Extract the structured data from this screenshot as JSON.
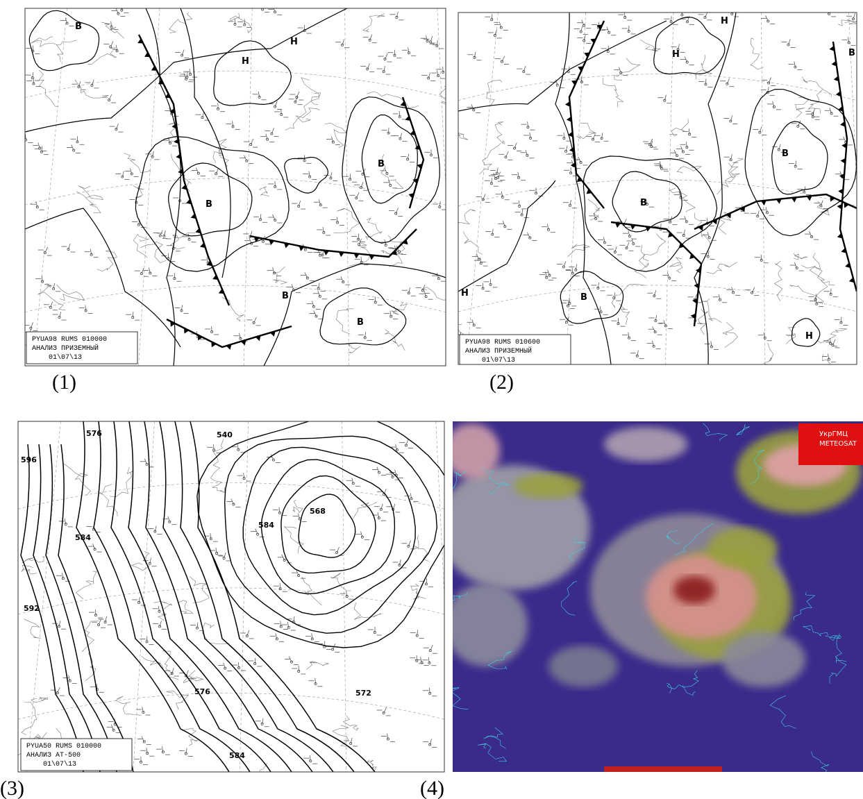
{
  "panels": [
    {
      "label": "(1)",
      "stamp": [
        "PYUA98  RUMS  010000",
        "АНАЛИЗ  ПРИЗЕМНЫЙ",
        "01\\07\\13"
      ],
      "centers": [
        "B",
        "H",
        "H",
        "B",
        "B",
        "B",
        "B"
      ]
    },
    {
      "label": "(2)",
      "stamp": [
        "PYUA98  RUMS  010600",
        "АНАЛИЗ  ПРИЗЕМНЫЙ",
        "01\\07\\13"
      ],
      "centers": [
        "H",
        "H",
        "H",
        "B",
        "B",
        "B",
        "H",
        "B"
      ]
    },
    {
      "label": "(3)",
      "stamp": [
        "PYUA50  RUMS  010000",
        "АНАЛИЗ  АТ-500",
        "01\\07\\13"
      ],
      "contours": [
        "596",
        "592",
        "584",
        "584",
        "576",
        "568",
        "540",
        "572",
        "584",
        "576"
      ]
    },
    {
      "label": "(4)",
      "badge": [
        "УкрГМЦ",
        "METEOSAT"
      ]
    }
  ]
}
